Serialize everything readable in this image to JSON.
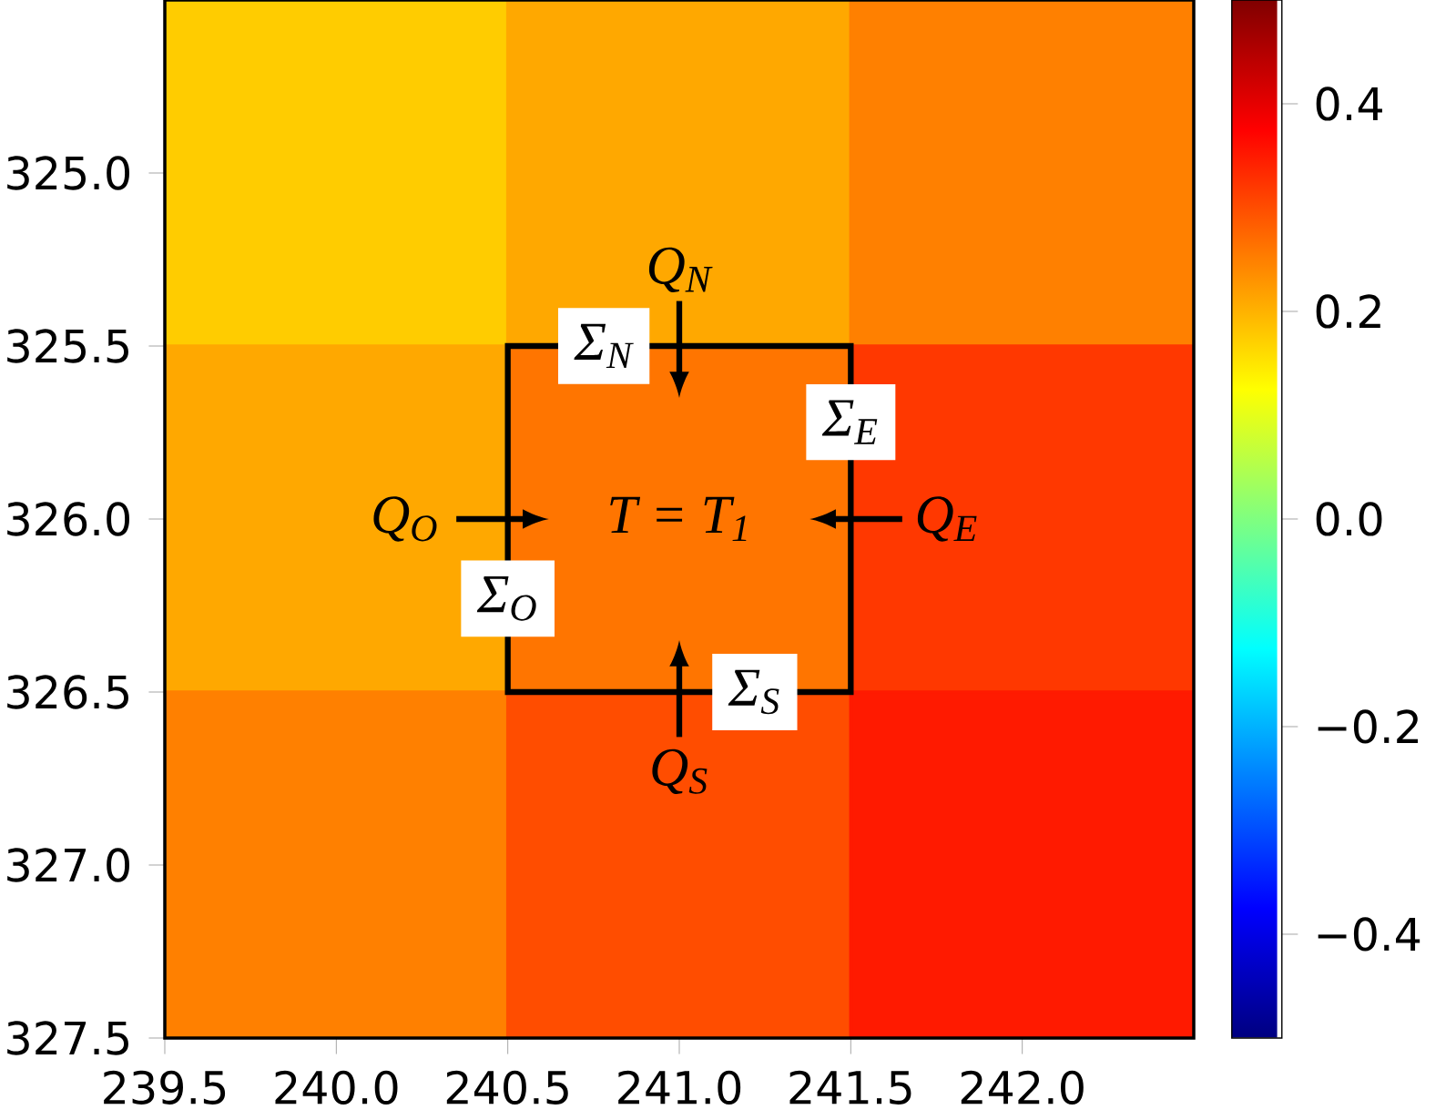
{
  "chart_data": {
    "type": "heatmap",
    "x": [
      240.0,
      241.0,
      242.0
    ],
    "y": [
      325.0,
      326.0,
      327.0
    ],
    "cells": [
      [
        0.175,
        0.21,
        0.25
      ],
      [
        0.21,
        0.26,
        0.32
      ],
      [
        0.25,
        0.3,
        0.35
      ]
    ],
    "xlim": [
      239.5,
      242.5
    ],
    "ylim": [
      327.5,
      324.5
    ],
    "xticks": [
      239.5,
      {
        "value": 240.0,
        "label": "240.0"
      },
      240.5,
      {
        "value": 241.0,
        "label": "241.0"
      },
      241.5,
      {
        "value": 242.0,
        "label": "242.0"
      }
    ],
    "yticks": [
      {
        "value": 325.0,
        "label": "325.0"
      },
      325.5,
      {
        "value": 326.0,
        "label": "326.0"
      },
      326.5,
      {
        "value": 327.0,
        "label": "327.0"
      },
      327.5
    ],
    "clim": [
      -0.5,
      0.5
    ],
    "cticks": [
      {
        "value": -0.4,
        "label": "−0.4"
      },
      {
        "value": -0.2,
        "label": "−0.2"
      },
      {
        "value": 0.0,
        "label": "0.0"
      },
      0.2,
      0.4
    ],
    "annotations": [
      "Q$_{N}$",
      "Σ$_{N}$",
      "Σ$_{E}$",
      "Q$_{O}$",
      "T = T$_{1}$",
      "Q$_{E}$",
      "Σ$_{O}$",
      "Σ$_{S}$",
      "Q$_{S}$"
    ]
  }
}
